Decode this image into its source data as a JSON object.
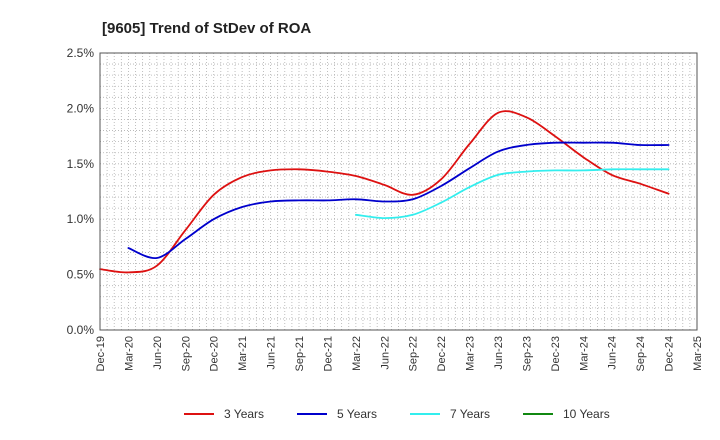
{
  "chart_data": {
    "type": "line",
    "title": "[9605]  Trend of StDev of ROA",
    "xlabel": "",
    "ylabel": "",
    "ylim": [
      0,
      2.5
    ],
    "y_ticks": [
      "0.0%",
      "0.5%",
      "1.0%",
      "1.5%",
      "2.0%",
      "2.5%"
    ],
    "x_ticks": [
      "Dec-19",
      "Mar-20",
      "Jun-20",
      "Sep-20",
      "Dec-20",
      "Mar-21",
      "Jun-21",
      "Sep-21",
      "Dec-21",
      "Mar-22",
      "Jun-22",
      "Sep-22",
      "Dec-22",
      "Mar-23",
      "Jun-23",
      "Sep-23",
      "Dec-23",
      "Mar-24",
      "Jun-24",
      "Sep-24",
      "Dec-24",
      "Mar-25"
    ],
    "grid": true,
    "legend_position": "bottom",
    "series": [
      {
        "name": "3 Years",
        "color": "#dd1111",
        "values": [
          0.55,
          0.52,
          0.58,
          0.9,
          1.22,
          1.38,
          1.44,
          1.45,
          1.43,
          1.39,
          1.31,
          1.22,
          1.36,
          1.68,
          1.96,
          1.92,
          1.75,
          1.56,
          1.4,
          1.32,
          1.23,
          null
        ]
      },
      {
        "name": "5 Years",
        "color": "#0000cc",
        "values": [
          null,
          0.74,
          0.65,
          0.82,
          1.0,
          1.11,
          1.16,
          1.17,
          1.17,
          1.18,
          1.16,
          1.18,
          1.3,
          1.46,
          1.61,
          1.67,
          1.69,
          1.69,
          1.69,
          1.67,
          1.67,
          null
        ]
      },
      {
        "name": "7 Years",
        "color": "#33eeee",
        "values": [
          null,
          null,
          null,
          null,
          null,
          null,
          null,
          null,
          null,
          1.04,
          1.01,
          1.04,
          1.15,
          1.29,
          1.4,
          1.43,
          1.44,
          1.44,
          1.45,
          1.45,
          1.45,
          null
        ]
      },
      {
        "name": "10 Years",
        "color": "#118811",
        "values": [
          null,
          null,
          null,
          null,
          null,
          null,
          null,
          null,
          null,
          null,
          null,
          null,
          null,
          null,
          null,
          null,
          null,
          null,
          null,
          null,
          null,
          null
        ]
      }
    ]
  }
}
